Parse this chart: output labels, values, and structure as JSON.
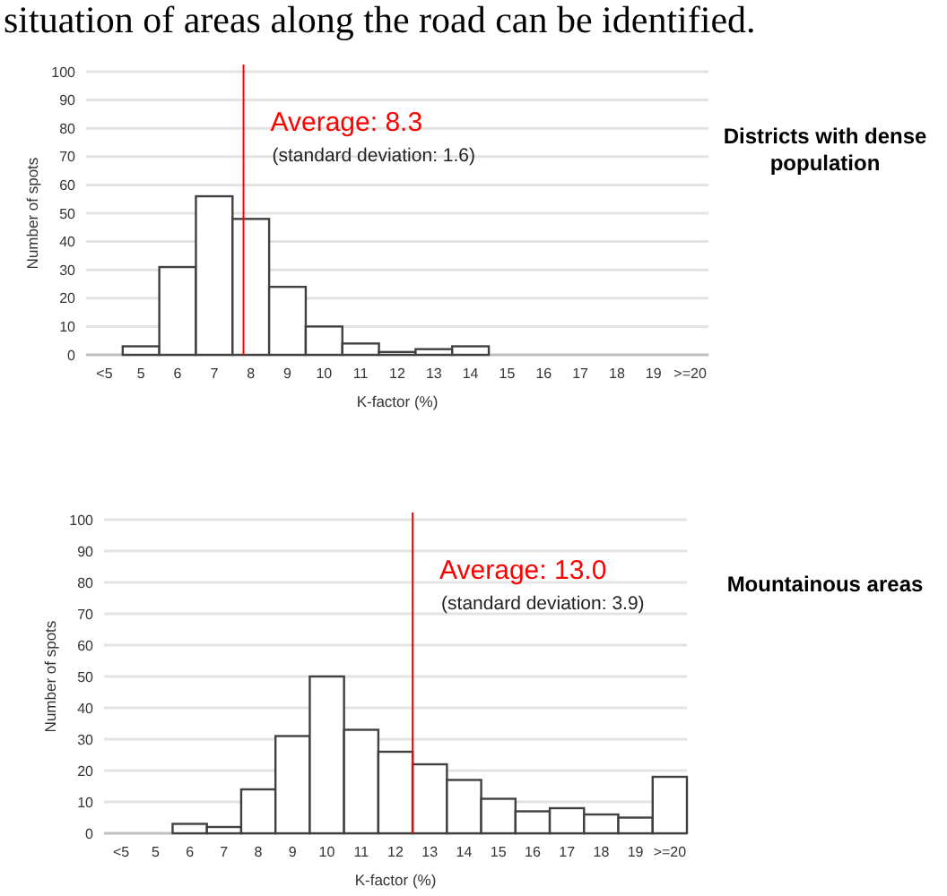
{
  "chart_data": [
    {
      "type": "histogram",
      "xlabel": "K-factor (%)",
      "ylabel": "Number of spots",
      "bins": [
        4,
        5,
        6,
        7,
        8,
        9,
        10,
        11,
        12,
        13,
        14,
        15,
        16,
        17,
        18,
        19,
        20,
        21
      ],
      "values": [
        0,
        3,
        31,
        56,
        48,
        24,
        10,
        4,
        1,
        2,
        3,
        0,
        0,
        0,
        0,
        0,
        0
      ],
      "color": "#ffffff",
      "xlim": [
        4,
        21
      ],
      "xticks": [
        {
          "value": 4.5,
          "label": "<5"
        },
        {
          "value": 5.5,
          "label": "5"
        },
        {
          "value": 6.5,
          "label": "6"
        },
        {
          "value": 7.5,
          "label": "7"
        },
        {
          "value": 8.5,
          "label": "8"
        },
        {
          "value": 9.5,
          "label": "9"
        },
        {
          "value": 10.5,
          "label": "10"
        },
        {
          "value": 11.5,
          "label": "11"
        },
        {
          "value": 12.5,
          "label": "12"
        },
        {
          "value": 13.5,
          "label": "13"
        },
        {
          "value": 14.5,
          "label": "14"
        },
        {
          "value": 15.5,
          "label": "15"
        },
        {
          "value": 16.5,
          "label": "16"
        },
        {
          "value": 17.5,
          "label": "17"
        },
        {
          "value": 18.5,
          "label": "18"
        },
        {
          "value": 19.5,
          "label": "19"
        },
        {
          "value": 20.5,
          "label": ">=20"
        }
      ],
      "ylim": [
        0,
        100
      ],
      "yticks": [
        0,
        10,
        20,
        30,
        40,
        50,
        60,
        70,
        80,
        90,
        100
      ],
      "grid": "y",
      "ref_lines": [
        {
          "axis": "x",
          "value": 8.3,
          "label": "Average: 8.3",
          "color": "#ff0000"
        }
      ],
      "annotations": [
        "(standard deviation: 1.6)",
        "Districts with dense population",
        "situation of areas along the road can be identified."
      ]
    },
    {
      "type": "histogram",
      "xlabel": "K-factor (%)",
      "ylabel": "Number of spots",
      "bins": [
        4,
        5,
        6,
        7,
        8,
        9,
        10,
        11,
        12,
        13,
        14,
        15,
        16,
        17,
        18,
        19,
        20,
        21
      ],
      "values": [
        0,
        0,
        3,
        2,
        14,
        31,
        50,
        33,
        26,
        22,
        17,
        11,
        7,
        8,
        6,
        5,
        18
      ],
      "color": "#ffffff",
      "xlim": [
        4,
        21
      ],
      "xticks": [
        {
          "value": 4.5,
          "label": "<5"
        },
        {
          "value": 5.5,
          "label": "5"
        },
        {
          "value": 6.5,
          "label": "6"
        },
        {
          "value": 7.5,
          "label": "7"
        },
        {
          "value": 8.5,
          "label": "8"
        },
        {
          "value": 9.5,
          "label": "9"
        },
        {
          "value": 10.5,
          "label": "10"
        },
        {
          "value": 11.5,
          "label": "11"
        },
        {
          "value": 12.5,
          "label": "12"
        },
        {
          "value": 13.5,
          "label": "13"
        },
        {
          "value": 14.5,
          "label": "14"
        },
        {
          "value": 15.5,
          "label": "15"
        },
        {
          "value": 16.5,
          "label": "16"
        },
        {
          "value": 17.5,
          "label": "17"
        },
        {
          "value": 18.5,
          "label": "18"
        },
        {
          "value": 19.5,
          "label": "19"
        },
        {
          "value": 20.5,
          "label": ">=20"
        }
      ],
      "ylim": [
        0,
        100
      ],
      "yticks": [
        0,
        10,
        20,
        30,
        40,
        50,
        60,
        70,
        80,
        90,
        100
      ],
      "grid": "y",
      "ref_lines": [
        {
          "axis": "x",
          "value": 13.0,
          "label": "Average: 13.0",
          "color": "#ff0000"
        }
      ],
      "annotations": [
        "(standard deviation: 3.9)",
        "Mountainous areas"
      ]
    }
  ]
}
